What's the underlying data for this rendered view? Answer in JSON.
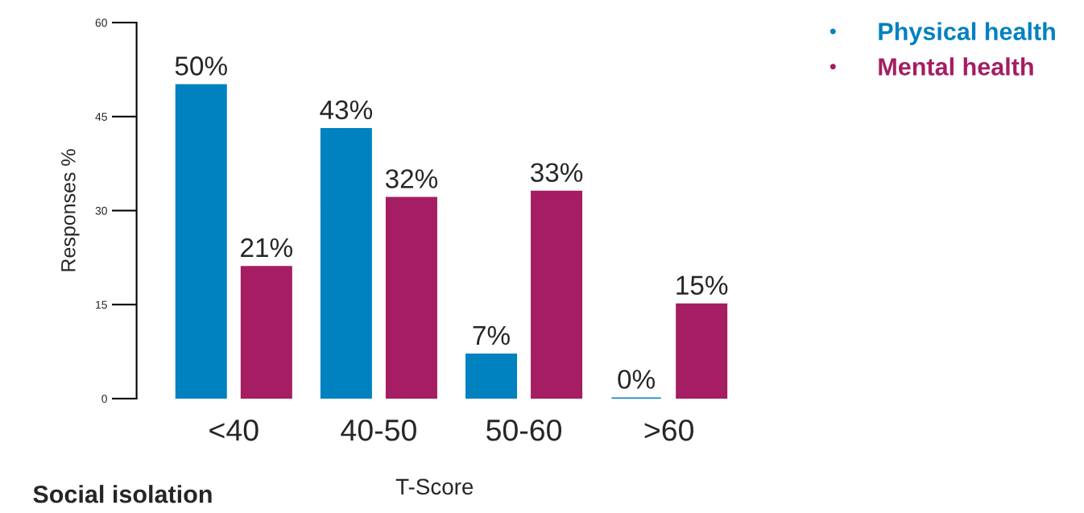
{
  "chart_data": {
    "type": "bar",
    "xlabel": "T-Score",
    "ylabel": "Responses %",
    "categories": [
      "<40",
      "40-50",
      "50-60",
      ">60"
    ],
    "series": [
      {
        "name": "Physical health",
        "color": "#0081c0",
        "values": [
          50,
          43,
          7,
          0
        ],
        "value_labels": [
          "50%",
          "43%",
          "7%",
          "0%"
        ]
      },
      {
        "name": "Mental health",
        "color": "#a51d62",
        "values": [
          21,
          32,
          33,
          15
        ],
        "value_labels": [
          "21%",
          "32%",
          "33%",
          "15%"
        ]
      }
    ],
    "ylim": [
      0,
      60
    ],
    "yticks": [
      0,
      15,
      30,
      45,
      60
    ],
    "grid": false,
    "legend": "top right",
    "marker": "circle",
    "annotations": [
      "Social isolation"
    ]
  }
}
